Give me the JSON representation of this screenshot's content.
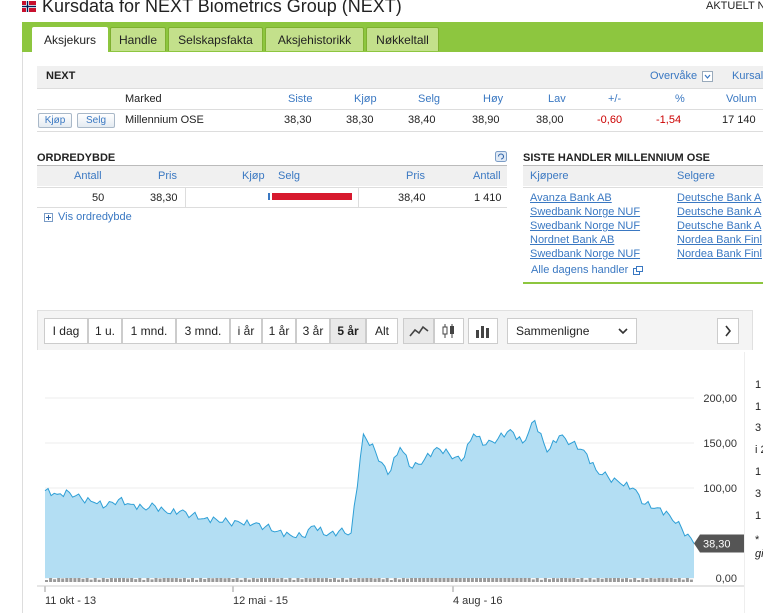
{
  "window": {
    "title": "Kursdata for NEXT Biometrics Group (NEXT)",
    "top_right": "AKTUELT N"
  },
  "tabs": [
    {
      "label": "Aksjekurs",
      "active": true
    },
    {
      "label": "Handle"
    },
    {
      "label": "Selskapsfakta"
    },
    {
      "label": "Aksjehistorikk"
    },
    {
      "label": "Nøkkeltall"
    }
  ],
  "quote": {
    "ticker": "NEXT",
    "overvake": "Overvåke",
    "kursal": "Kursal",
    "headers": [
      "Marked",
      "Siste",
      "Kjøp",
      "Selg",
      "Høy",
      "Lav",
      "+/-",
      "%",
      "Volum"
    ],
    "row": {
      "buy_button": "Kjøp",
      "sell_button": "Selg",
      "market": "Millennium OSE",
      "siste": "38,30",
      "kjop": "38,30",
      "selg": "38,40",
      "hoy": "38,90",
      "lav": "38,00",
      "change": "-0,60",
      "pct": "-1,54",
      "volum": "17 140"
    }
  },
  "orderbook": {
    "title": "ORDREDYBDE",
    "headers": [
      "Antall",
      "Pris",
      "Kjøp",
      "Selg",
      "Pris",
      "Antall"
    ],
    "row": {
      "bid_qty": "50",
      "bid_price": "38,30",
      "ask_price": "38,40",
      "ask_qty": "1 410"
    },
    "bid_depth": 0.03,
    "ask_depth": 1.0,
    "show_more": "Vis ordredybde"
  },
  "trades": {
    "title": "SISTE HANDLER MILLENNIUM OSE",
    "buyers_header": "Kjøpere",
    "sellers_header": "Selgere",
    "buyers": [
      "Avanza Bank AB",
      "Swedbank Norge NUF",
      "Swedbank Norge NUF",
      "Nordnet Bank AB",
      "Swedbank Norge NUF"
    ],
    "sellers": [
      "Deutsche Bank A",
      "Deutsche Bank A",
      "Deutsche Bank A",
      "Nordea Bank Finl",
      "Nordea Bank Finl"
    ],
    "all_trades": "Alle dagens handler"
  },
  "toolbar": {
    "periods": [
      {
        "label": "I dag"
      },
      {
        "label": "1 u."
      },
      {
        "label": "1 mnd."
      },
      {
        "label": "3 mnd."
      },
      {
        "label": "i år"
      },
      {
        "label": "1 år"
      },
      {
        "label": "3 år"
      },
      {
        "label": "5 år",
        "active": true
      },
      {
        "label": "Alt"
      }
    ],
    "icons": [
      "line-chart-icon",
      "candlestick-icon",
      "bar-volume-icon"
    ],
    "compare_label": "Sammenligne",
    "next_icon": "chevron-right-icon"
  },
  "chart_data": {
    "type": "area",
    "x_labels": [
      "11 okt - 13",
      "12 mai - 15",
      "4 aug - 16"
    ],
    "y_ticks": [
      "200,00",
      "150,00",
      "100,00",
      "0,00"
    ],
    "ylim": [
      0,
      220
    ],
    "last_value_label": "38,30",
    "x": [
      "2013-10-11",
      "2013-11",
      "2013-12",
      "2014-01",
      "2014-02",
      "2014-03",
      "2014-04",
      "2014-05",
      "2014-06",
      "2014-07",
      "2014-08",
      "2014-09",
      "2014-10",
      "2014-11",
      "2014-12",
      "2015-01",
      "2015-02",
      "2015-03",
      "2015-04",
      "2015-05",
      "2015-06",
      "2015-07",
      "2015-08",
      "2015-09",
      "2015-10",
      "2015-11",
      "2015-12",
      "2016-01",
      "2016-02",
      "2016-03",
      "2016-04",
      "2016-05",
      "2016-06",
      "2016-07",
      "2016-08",
      "2016-09",
      "2016-10",
      "2016-11",
      "2016-12",
      "2017-01",
      "2017-02",
      "2017-03",
      "2017-04",
      "2017-05",
      "2017-06",
      "2017-07",
      "2017-08",
      "2017-09",
      "2017-10",
      "2017-11",
      "2017-12",
      "2018-01",
      "2018-02",
      "2018-03"
    ],
    "values": [
      97,
      93,
      95,
      88,
      84,
      80,
      87,
      82,
      78,
      80,
      72,
      74,
      70,
      66,
      65,
      62,
      61,
      60,
      57,
      52,
      48,
      46,
      58,
      47,
      52,
      50,
      160,
      140,
      115,
      145,
      122,
      132,
      145,
      138,
      130,
      160,
      148,
      155,
      165,
      150,
      175,
      140,
      158,
      150,
      142,
      120,
      112,
      105,
      100,
      82,
      78,
      70,
      55,
      38.3
    ],
    "volume_max_fraction": 0.12
  },
  "right_edge": [
    "1",
    "1",
    "3",
    "i 2",
    "1",
    "3",
    "1",
    "*",
    "gi"
  ]
}
